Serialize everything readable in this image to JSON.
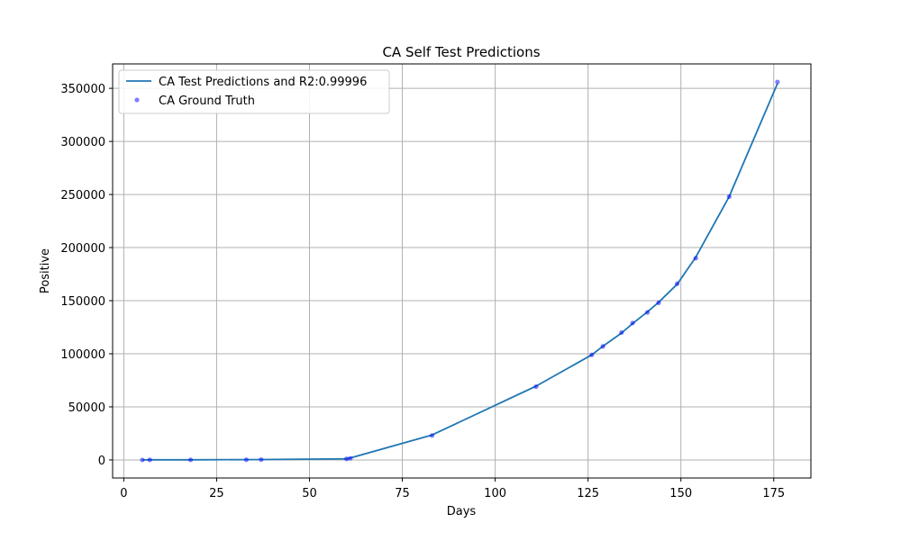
{
  "chart_data": {
    "type": "line",
    "title": "CA Self Test Predictions",
    "xlabel": "Days",
    "ylabel": "Positive",
    "xlim": [
      -3,
      185
    ],
    "ylim": [
      -17000,
      373000
    ],
    "xticks": [
      0,
      25,
      50,
      75,
      100,
      125,
      150,
      175
    ],
    "yticks": [
      0,
      50000,
      100000,
      150000,
      200000,
      250000,
      300000,
      350000
    ],
    "grid": true,
    "legend_position": "top-left",
    "series": [
      {
        "name": "CA Test Predictions and R2:0.99996",
        "style": "line",
        "color": "#1f77b4",
        "x": [
          5,
          7,
          18,
          33,
          37,
          60,
          61,
          83,
          111,
          126,
          129,
          134,
          137,
          141,
          144,
          149,
          154,
          163,
          176
        ],
        "y": [
          50,
          100,
          150,
          300,
          400,
          1100,
          1800,
          23500,
          69500,
          99000,
          107000,
          119500,
          128500,
          139500,
          148500,
          165500,
          191000,
          248000,
          354500
        ]
      },
      {
        "name": "CA Ground Truth",
        "style": "points",
        "color": "#0000ff",
        "x": [
          5,
          7,
          18,
          33,
          37,
          60,
          61,
          83,
          111,
          126,
          129,
          134,
          137,
          141,
          144,
          149,
          154,
          163,
          176
        ],
        "y": [
          0,
          50,
          100,
          200,
          300,
          1000,
          1500,
          23000,
          69000,
          99000,
          107000,
          120000,
          129000,
          139000,
          148000,
          166000,
          190000,
          248000,
          356000
        ]
      }
    ]
  }
}
